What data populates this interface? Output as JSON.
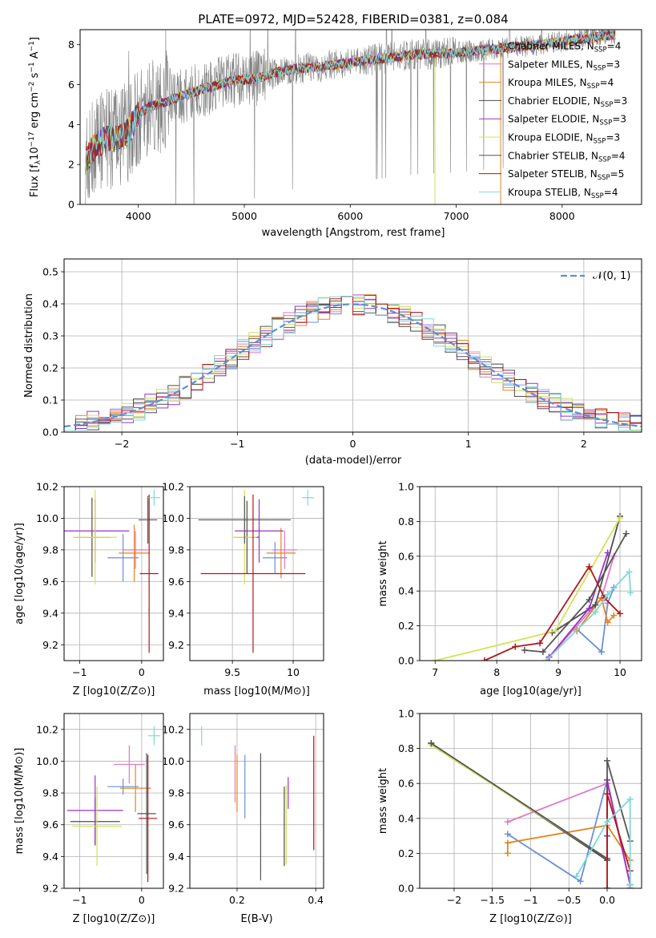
{
  "figure_title": "PLATE=0972, MJD=52428, FIBERID=0381, z=0.084",
  "colors": {
    "Chabrier MILES": "#6a8fd8",
    "Salpeter MILES": "#e377c2",
    "Kroupa MILES": "#e8821e",
    "Chabrier ELODIE": "#4d4d4d",
    "Salpeter ELODIE": "#9b30c8",
    "Kroupa ELODIE": "#d4e157",
    "Chabrier STELIB": "#555555",
    "Salpeter STELIB": "#b0181a",
    "Kroupa STELIB": "#7ed8d8",
    "data": "#808080",
    "gaussian": "#5a8fd6"
  },
  "legend_spectrum": [
    {
      "name": "Chabrier MILES",
      "nssp": "4"
    },
    {
      "name": "Salpeter MILES",
      "nssp": "3"
    },
    {
      "name": "Kroupa MILES",
      "nssp": "4"
    },
    {
      "name": "Chabrier ELODIE",
      "nssp": "3"
    },
    {
      "name": "Salpeter ELODIE",
      "nssp": "3"
    },
    {
      "name": "Kroupa ELODIE",
      "nssp": "3"
    },
    {
      "name": "Chabrier STELIB",
      "nssp": "4"
    },
    {
      "name": "Salpeter STELIB",
      "nssp": "5"
    },
    {
      "name": "Kroupa STELIB",
      "nssp": "4"
    }
  ],
  "chart_data": [
    {
      "id": "spectrum",
      "type": "line",
      "xlabel": "wavelength [Angstrom, rest frame]",
      "ylabel": "Flux [f_λ10^-17 erg cm^-2 s^-1 A^-1]",
      "xlim": [
        3450,
        8750
      ],
      "ylim": [
        0,
        8.75
      ],
      "xticks": [
        4000,
        5000,
        6000,
        7000,
        8000
      ],
      "yticks": [
        0,
        2,
        4,
        6,
        8
      ],
      "continuum": [
        [
          3500,
          2.2
        ],
        [
          3600,
          3.0
        ],
        [
          3700,
          3.3
        ],
        [
          3800,
          3.3
        ],
        [
          3900,
          3.6
        ],
        [
          4000,
          4.5
        ],
        [
          4100,
          4.9
        ],
        [
          4300,
          5.2
        ],
        [
          4500,
          5.6
        ],
        [
          4700,
          5.9
        ],
        [
          4900,
          6.2
        ],
        [
          5100,
          6.3
        ],
        [
          5300,
          6.6
        ],
        [
          5500,
          6.8
        ],
        [
          5700,
          6.9
        ],
        [
          6000,
          7.1
        ],
        [
          6300,
          7.3
        ],
        [
          6600,
          7.5
        ],
        [
          7000,
          7.6
        ],
        [
          7400,
          7.8
        ],
        [
          7800,
          8.0
        ],
        [
          8200,
          8.3
        ],
        [
          8500,
          8.5
        ]
      ],
      "grid": false
    },
    {
      "id": "residuals",
      "type": "step",
      "xlabel": "(data-model)/error",
      "ylabel": "Normed distribution",
      "xlim": [
        -2.5,
        2.5
      ],
      "ylim": [
        0,
        0.54
      ],
      "xticks": [
        -2,
        -1,
        0,
        1,
        2
      ],
      "yticks": [
        0.0,
        0.1,
        0.2,
        0.3,
        0.4,
        0.5
      ],
      "legend": "N(0,1)",
      "grid": true
    },
    {
      "id": "age_vs_Z",
      "type": "errorbar",
      "xlabel": "Z [log10(Z/Z⊙)]",
      "ylabel": "age [log10(age/yr)]",
      "xlim": [
        -1.25,
        0.35
      ],
      "ylim": [
        9.1,
        10.2
      ],
      "xticks": [
        -1,
        0
      ],
      "yticks": [
        9.2,
        9.4,
        9.6,
        9.8,
        10.0,
        10.2
      ],
      "points": [
        {
          "series": "Chabrier MILES",
          "x": -0.3,
          "y": 9.75,
          "xerr": 0.25,
          "yerr": 0.15
        },
        {
          "series": "Salpeter MILES",
          "x": -0.1,
          "y": 9.8,
          "xerr": 0.2,
          "yerr": 0.12
        },
        {
          "series": "Kroupa MILES",
          "x": -0.12,
          "y": 9.78,
          "xerr": 0.25,
          "yerr": 0.18
        },
        {
          "series": "Chabrier ELODIE",
          "x": -0.8,
          "y": 9.88,
          "xerr": 0.3,
          "yerr": 0.25
        },
        {
          "series": "Salpeter ELODIE",
          "x": -0.75,
          "y": 9.92,
          "xerr": 0.55,
          "yerr": 0.2
        },
        {
          "series": "Kroupa ELODIE",
          "x": -0.75,
          "y": 9.88,
          "xerr": 0.35,
          "yerr": 0.3
        },
        {
          "series": "Chabrier STELIB",
          "x": 0.1,
          "y": 9.99,
          "xerr": 0.15,
          "yerr": 0.15
        },
        {
          "series": "Salpeter STELIB",
          "x": 0.12,
          "y": 9.65,
          "xerr": 0.15,
          "yerr": 0.5
        },
        {
          "series": "Kroupa STELIB",
          "x": 0.2,
          "y": 10.13,
          "xerr": 0.1,
          "yerr": 0.05
        }
      ]
    },
    {
      "id": "age_vs_mass",
      "type": "errorbar",
      "xlabel": "mass [log10(M/M⊙)]",
      "ylabel": "",
      "xlim": [
        9.15,
        10.25
      ],
      "ylim": [
        9.1,
        10.2
      ],
      "xticks": [
        9.5,
        10.0
      ],
      "yticks": [
        9.2,
        9.4,
        9.6,
        9.8,
        10.0,
        10.2
      ],
      "points": [
        {
          "series": "Chabrier MILES",
          "x": 9.85,
          "y": 9.75,
          "xerr": 0.1,
          "yerr": 0.1
        },
        {
          "series": "Salpeter MILES",
          "x": 9.93,
          "y": 9.8,
          "xerr": 0.1,
          "yerr": 0.12
        },
        {
          "series": "Kroupa MILES",
          "x": 9.9,
          "y": 9.78,
          "xerr": 0.12,
          "yerr": 0.16
        },
        {
          "series": "Chabrier ELODIE",
          "x": 9.62,
          "y": 9.88,
          "xerr": 0.1,
          "yerr": 0.23
        },
        {
          "series": "Salpeter ELODIE",
          "x": 9.72,
          "y": 9.92,
          "xerr": 0.2,
          "yerr": 0.2
        },
        {
          "series": "Kroupa ELODIE",
          "x": 9.6,
          "y": 9.88,
          "xerr": 0.1,
          "yerr": 0.3
        },
        {
          "series": "Chabrier STELIB",
          "x": 9.6,
          "y": 9.99,
          "xerr": 0.38,
          "yerr": 0.15
        },
        {
          "series": "Salpeter STELIB",
          "x": 9.67,
          "y": 9.65,
          "xerr": 0.43,
          "yerr": 0.5
        },
        {
          "series": "Kroupa STELIB",
          "x": 10.12,
          "y": 10.13,
          "xerr": 0.05,
          "yerr": 0.05
        }
      ]
    },
    {
      "id": "weight_vs_age",
      "type": "line",
      "xlabel": "age [log10(age/yr)]",
      "ylabel": "mass weight",
      "xlim": [
        6.75,
        10.35
      ],
      "ylim": [
        0,
        1.0
      ],
      "xticks": [
        7,
        8,
        9,
        10
      ],
      "yticks": [
        0.0,
        0.2,
        0.4,
        0.6,
        0.8,
        1.0
      ],
      "series": [
        {
          "name": "Chabrier MILES",
          "x": [
            9.3,
            9.7,
            9.8,
            9.9
          ],
          "y": [
            0.18,
            0.05,
            0.33,
            0.42
          ]
        },
        {
          "name": "Salpeter MILES",
          "x": [
            8.85,
            9.7,
            9.9
          ],
          "y": [
            0.02,
            0.36,
            0.6
          ]
        },
        {
          "name": "Kroupa MILES",
          "x": [
            9.3,
            9.7,
            9.8,
            9.9
          ],
          "y": [
            0.17,
            0.36,
            0.22,
            0.26
          ]
        },
        {
          "name": "Chabrier ELODIE",
          "x": [
            8.9,
            9.6,
            10.0
          ],
          "y": [
            0.16,
            0.32,
            0.83
          ]
        },
        {
          "name": "Salpeter ELODIE",
          "x": [
            8.85,
            9.5,
            9.8
          ],
          "y": [
            0.02,
            0.3,
            0.62
          ]
        },
        {
          "name": "Kroupa ELODIE",
          "x": [
            7.0,
            8.95,
            10.0
          ],
          "y": [
            0.0,
            0.17,
            0.82
          ]
        },
        {
          "name": "Chabrier STELIB",
          "x": [
            8.45,
            8.75,
            9.5,
            10.1
          ],
          "y": [
            0.06,
            0.05,
            0.35,
            0.73
          ]
        },
        {
          "name": "Salpeter STELIB",
          "x": [
            7.8,
            8.3,
            8.7,
            9.5,
            9.75,
            10.0
          ],
          "y": [
            0.0,
            0.08,
            0.1,
            0.54,
            0.36,
            0.27
          ]
        },
        {
          "name": "Kroupa STELIB",
          "x": [
            8.8,
            9.6,
            9.8,
            10.15,
            10.17
          ],
          "y": [
            0.0,
            0.28,
            0.38,
            0.51,
            0.39
          ]
        }
      ]
    },
    {
      "id": "mass_vs_Z",
      "type": "errorbar",
      "xlabel": "Z [log10(Z/Z⊙)]",
      "ylabel": "mass [log10(M/M⊙)]",
      "xlim": [
        -1.25,
        0.35
      ],
      "ylim": [
        9.2,
        10.3
      ],
      "xticks": [
        -1,
        0
      ],
      "yticks": [
        9.2,
        9.4,
        9.6,
        9.8,
        10.0,
        10.2
      ],
      "points": [
        {
          "series": "Chabrier MILES",
          "x": -0.3,
          "y": 9.84,
          "xerr": 0.25,
          "yerr": 0.05
        },
        {
          "series": "Salpeter MILES",
          "x": -0.2,
          "y": 9.98,
          "xerr": 0.25,
          "yerr": 0.12
        },
        {
          "series": "Kroupa MILES",
          "x": -0.1,
          "y": 9.83,
          "xerr": 0.25,
          "yerr": 0.15
        },
        {
          "series": "Chabrier ELODIE",
          "x": -0.75,
          "y": 9.62,
          "xerr": 0.4,
          "yerr": 0.15
        },
        {
          "series": "Salpeter ELODIE",
          "x": -0.75,
          "y": 9.69,
          "xerr": 0.45,
          "yerr": 0.22
        },
        {
          "series": "Kroupa ELODIE",
          "x": -0.72,
          "y": 9.59,
          "xerr": 0.4,
          "yerr": 0.25
        },
        {
          "series": "Chabrier STELIB",
          "x": 0.08,
          "y": 9.67,
          "xerr": 0.15,
          "yerr": 0.38
        },
        {
          "series": "Salpeter STELIB",
          "x": 0.1,
          "y": 9.64,
          "xerr": 0.15,
          "yerr": 0.4
        },
        {
          "series": "Kroupa STELIB",
          "x": 0.2,
          "y": 10.16,
          "xerr": 0.1,
          "yerr": 0.06
        }
      ]
    },
    {
      "id": "mass_vs_EBV",
      "type": "errorbar",
      "xlabel": "E(B-V)",
      "ylabel": "",
      "xlim": [
        0.08,
        0.42
      ],
      "ylim": [
        9.2,
        10.3
      ],
      "xticks": [
        0.2,
        0.4
      ],
      "yticks": [
        9.2,
        9.4,
        9.6,
        9.8,
        10.0,
        10.2
      ],
      "points": [
        {
          "series": "Chabrier MILES",
          "x": 0.22,
          "y": 9.84,
          "xerr": 0,
          "yerr": 0.2
        },
        {
          "series": "Salpeter MILES",
          "x": 0.195,
          "y": 9.92,
          "xerr": 0,
          "yerr": 0.18
        },
        {
          "series": "Kroupa MILES",
          "x": 0.2,
          "y": 9.86,
          "xerr": 0,
          "yerr": 0.18
        },
        {
          "series": "Chabrier ELODIE",
          "x": 0.32,
          "y": 9.59,
          "xerr": 0,
          "yerr": 0.25
        },
        {
          "series": "Salpeter ELODIE",
          "x": 0.33,
          "y": 9.8,
          "xerr": 0,
          "yerr": 0.1
        },
        {
          "series": "Kroupa ELODIE",
          "x": 0.325,
          "y": 9.6,
          "xerr": 0,
          "yerr": 0.25
        },
        {
          "series": "Chabrier STELIB",
          "x": 0.26,
          "y": 9.65,
          "xerr": 0,
          "yerr": 0.4
        },
        {
          "series": "Salpeter STELIB",
          "x": 0.395,
          "y": 9.8,
          "xerr": 0,
          "yerr": 0.36
        },
        {
          "series": "Kroupa STELIB",
          "x": 0.11,
          "y": 10.16,
          "xerr": 0,
          "yerr": 0.06
        }
      ]
    },
    {
      "id": "weight_vs_Z",
      "type": "line",
      "xlabel": "Z [log10(Z/Z⊙)]",
      "ylabel": "mass weight",
      "xlim": [
        -2.45,
        0.45
      ],
      "ylim": [
        0,
        1.0
      ],
      "xticks": [
        -2.0,
        -1.5,
        -1.0,
        -0.5,
        0.0
      ],
      "yticks": [
        0.0,
        0.2,
        0.4,
        0.6,
        0.8,
        1.0
      ],
      "series": [
        {
          "name": "Chabrier MILES",
          "x": [
            -1.3,
            -0.35,
            0.0,
            0.0
          ],
          "y": [
            0.31,
            0.04,
            0.62,
            0.3
          ]
        },
        {
          "name": "Salpeter MILES",
          "x": [
            -1.3,
            0.0,
            0.3
          ],
          "y": [
            0.38,
            0.6,
            0.02
          ]
        },
        {
          "name": "Kroupa MILES",
          "x": [
            -1.3,
            -1.3,
            0.0,
            0.3
          ],
          "y": [
            0.2,
            0.26,
            0.36,
            0.16
          ]
        },
        {
          "name": "Chabrier ELODIE",
          "x": [
            -2.3,
            0.0,
            0.0
          ],
          "y": [
            0.83,
            0.16,
            0.0
          ]
        },
        {
          "name": "Salpeter ELODIE",
          "x": [
            0.0,
            0.0,
            0.3
          ],
          "y": [
            0.3,
            0.62,
            0.02
          ]
        },
        {
          "name": "Kroupa ELODIE",
          "x": [
            -2.3,
            0.0,
            0.0
          ],
          "y": [
            0.82,
            0.17,
            0.0
          ]
        },
        {
          "name": "Chabrier STELIB",
          "x": [
            -2.3,
            0.0,
            0.0,
            0.3
          ],
          "y": [
            0.83,
            0.17,
            0.73,
            0.27
          ]
        },
        {
          "name": "Salpeter STELIB",
          "x": [
            0.0,
            0.0,
            0.3,
            0.3
          ],
          "y": [
            0.0,
            0.54,
            0.1,
            0.0
          ]
        },
        {
          "name": "Kroupa STELIB",
          "x": [
            -0.4,
            0.0,
            0.3,
            0.3
          ],
          "y": [
            0.07,
            0.38,
            0.51,
            0.02
          ]
        }
      ]
    }
  ]
}
